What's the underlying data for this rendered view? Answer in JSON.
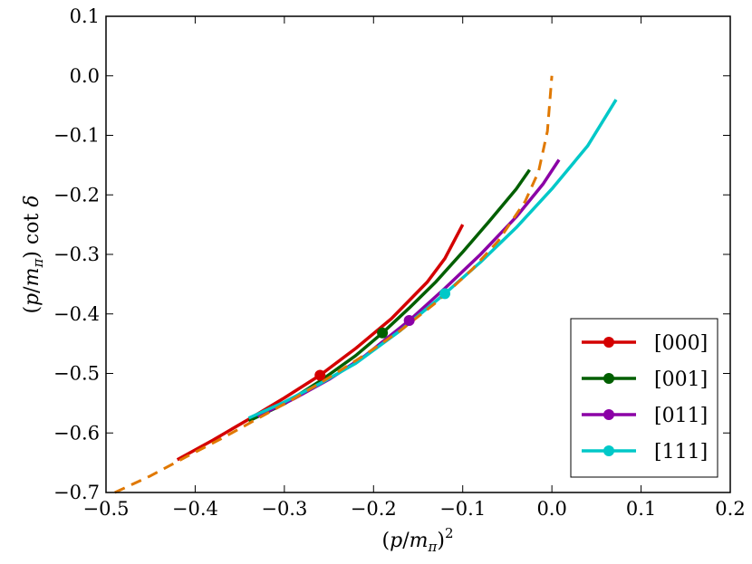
{
  "chart_data": {
    "type": "line",
    "xlabel": "(p/mπ)²",
    "ylabel": "(p/mπ) cot δ",
    "xlim": [
      -0.5,
      0.2
    ],
    "ylim": [
      -0.7,
      0.1
    ],
    "xticks": [
      -0.5,
      -0.4,
      -0.3,
      -0.2,
      -0.1,
      0.0,
      0.1,
      0.2
    ],
    "yticks": [
      -0.7,
      -0.6,
      -0.5,
      -0.4,
      -0.3,
      -0.2,
      -0.1,
      0.0,
      0.1
    ],
    "xtick_labels": [
      "−0.5",
      "−0.4",
      "−0.3",
      "−0.2",
      "−0.1",
      "0.0",
      "0.1",
      "0.2"
    ],
    "ytick_labels": [
      "−0.7",
      "−0.6",
      "−0.5",
      "−0.4",
      "−0.3",
      "−0.2",
      "−0.1",
      "0.0",
      "0.1"
    ],
    "grid": false,
    "legend_position": "lower-right",
    "series": [
      {
        "name": "[000]",
        "color": "#d40000",
        "style": "solid",
        "x": [
          -0.42,
          -0.38,
          -0.34,
          -0.3,
          -0.26,
          -0.22,
          -0.18,
          -0.14,
          -0.12,
          -0.1
        ],
        "y": [
          -0.645,
          -0.612,
          -0.577,
          -0.541,
          -0.503,
          -0.458,
          -0.408,
          -0.347,
          -0.307,
          -0.25
        ],
        "marker": {
          "x": -0.26,
          "y": -0.503
        }
      },
      {
        "name": "[001]",
        "color": "#005f00",
        "style": "solid",
        "x": [
          -0.34,
          -0.3,
          -0.26,
          -0.22,
          -0.19,
          -0.16,
          -0.13,
          -0.1,
          -0.07,
          -0.04,
          -0.025
        ],
        "y": [
          -0.58,
          -0.551,
          -0.513,
          -0.47,
          -0.432,
          -0.39,
          -0.346,
          -0.296,
          -0.244,
          -0.19,
          -0.158
        ],
        "marker": {
          "x": -0.19,
          "y": -0.432
        }
      },
      {
        "name": "[011]",
        "color": "#8b00a6",
        "style": "solid",
        "x": [
          -0.33,
          -0.29,
          -0.25,
          -0.21,
          -0.16,
          -0.12,
          -0.08,
          -0.04,
          -0.01,
          0.008
        ],
        "y": [
          -0.572,
          -0.543,
          -0.51,
          -0.471,
          -0.411,
          -0.357,
          -0.3,
          -0.237,
          -0.182,
          -0.141
        ],
        "marker": {
          "x": -0.16,
          "y": -0.411
        }
      },
      {
        "name": "[111]",
        "color": "#00c8c8",
        "style": "solid",
        "x": [
          -0.34,
          -0.3,
          -0.26,
          -0.22,
          -0.17,
          -0.12,
          -0.08,
          -0.04,
          0.0,
          0.04,
          0.072
        ],
        "y": [
          -0.575,
          -0.548,
          -0.517,
          -0.483,
          -0.428,
          -0.366,
          -0.313,
          -0.255,
          -0.19,
          -0.118,
          -0.04
        ],
        "marker": {
          "x": -0.12,
          "y": -0.366
        }
      },
      {
        "name": "",
        "color": "#e07800",
        "style": "dashed",
        "x": [
          -0.49,
          -0.45,
          -0.41,
          -0.37,
          -0.33,
          -0.29,
          -0.25,
          -0.21,
          -0.17,
          -0.13,
          -0.09,
          -0.06,
          -0.03,
          -0.015,
          -0.005,
          0.0
        ],
        "y": [
          -0.7,
          -0.672,
          -0.64,
          -0.609,
          -0.576,
          -0.543,
          -0.507,
          -0.469,
          -0.428,
          -0.381,
          -0.326,
          -0.277,
          -0.211,
          -0.161,
          -0.093,
          0.0
        ]
      }
    ]
  }
}
